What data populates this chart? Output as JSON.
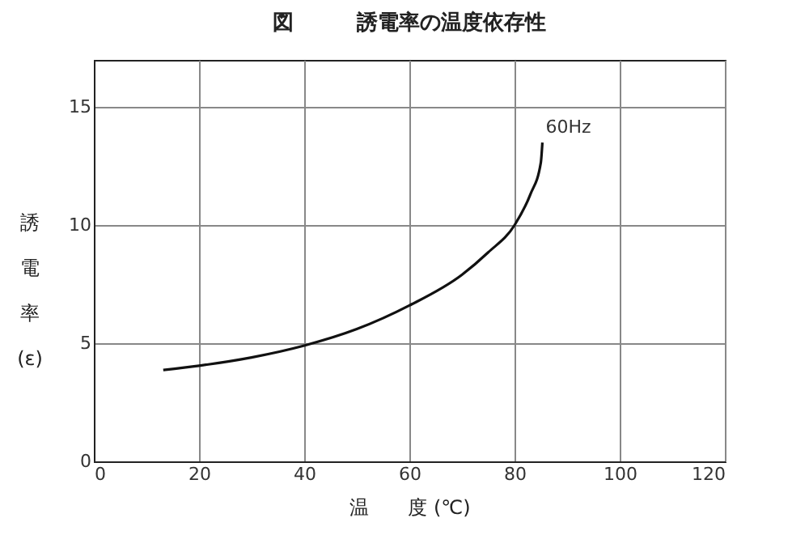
{
  "chart_data": {
    "type": "line",
    "title": "図　　　誘電率の温度依存性",
    "xlabel": "温　　度 (℃)",
    "ylabel": "誘電率(ε)",
    "x": [
      13.2,
      20,
      30,
      40,
      50,
      60,
      70,
      75,
      80,
      83,
      85,
      85.3
    ],
    "series": [
      {
        "color": "#111111",
        "values": [
          3.87,
          4.05,
          4.4,
          4.9,
          5.6,
          6.6,
          7.9,
          8.85,
          10,
          11.3,
          12.65,
          13.5
        ]
      }
    ],
    "xlim": [
      0,
      120
    ],
    "xticks": [
      0,
      20,
      40,
      60,
      80,
      100,
      120
    ],
    "ylim": [
      0,
      17
    ],
    "yticks": [
      0,
      5,
      10,
      15
    ],
    "grid": true,
    "marker": "none",
    "line_style": "solid",
    "annotations": [
      {
        "text": "60Hz",
        "x": 85.3,
        "y": 13.5
      }
    ]
  }
}
